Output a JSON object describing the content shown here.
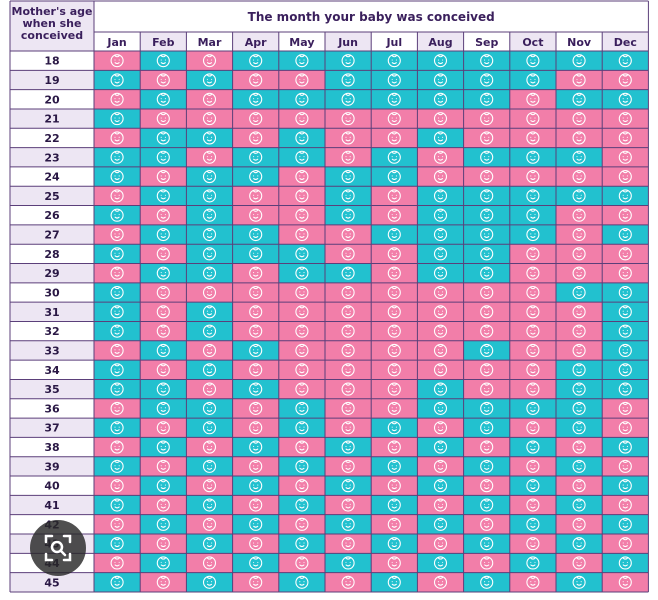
{
  "chart_data": {
    "type": "table",
    "corner_label": [
      "Mother's age",
      "when she",
      "conceived"
    ],
    "title": "The month your baby was conceived",
    "months": [
      "Jan",
      "Feb",
      "Mar",
      "Apr",
      "May",
      "Jun",
      "Jul",
      "Aug",
      "Sep",
      "Oct",
      "Nov",
      "Dec"
    ],
    "ages": [
      "18",
      "19",
      "20",
      "21",
      "22",
      "23",
      "24",
      "25",
      "26",
      "27",
      "28",
      "29",
      "30",
      "31",
      "32",
      "33",
      "34",
      "35",
      "36",
      "37",
      "38",
      "39",
      "40",
      "41",
      "42",
      "43",
      "44",
      "45"
    ],
    "legend_codes": {
      "G": "pink face",
      "B": "blue face"
    },
    "cells": [
      [
        "G",
        "B",
        "G",
        "B",
        "B",
        "B",
        "B",
        "B",
        "B",
        "B",
        "B",
        "B"
      ],
      [
        "B",
        "G",
        "B",
        "G",
        "G",
        "B",
        "B",
        "B",
        "B",
        "B",
        "G",
        "G"
      ],
      [
        "G",
        "B",
        "G",
        "B",
        "B",
        "B",
        "B",
        "B",
        "B",
        "G",
        "B",
        "B"
      ],
      [
        "B",
        "G",
        "G",
        "G",
        "G",
        "G",
        "G",
        "G",
        "G",
        "G",
        "G",
        "G"
      ],
      [
        "G",
        "B",
        "B",
        "G",
        "B",
        "G",
        "G",
        "B",
        "G",
        "G",
        "G",
        "G"
      ],
      [
        "B",
        "B",
        "G",
        "B",
        "B",
        "G",
        "B",
        "G",
        "B",
        "B",
        "B",
        "G"
      ],
      [
        "B",
        "G",
        "B",
        "B",
        "G",
        "B",
        "B",
        "G",
        "G",
        "G",
        "G",
        "G"
      ],
      [
        "G",
        "B",
        "B",
        "G",
        "G",
        "B",
        "G",
        "B",
        "B",
        "B",
        "B",
        "B"
      ],
      [
        "B",
        "G",
        "B",
        "G",
        "G",
        "B",
        "G",
        "B",
        "B",
        "B",
        "G",
        "G"
      ],
      [
        "G",
        "B",
        "B",
        "B",
        "G",
        "G",
        "B",
        "B",
        "B",
        "B",
        "G",
        "B"
      ],
      [
        "B",
        "G",
        "B",
        "B",
        "B",
        "G",
        "G",
        "B",
        "B",
        "G",
        "G",
        "G"
      ],
      [
        "G",
        "B",
        "B",
        "G",
        "B",
        "B",
        "G",
        "B",
        "B",
        "G",
        "G",
        "G"
      ],
      [
        "B",
        "G",
        "G",
        "G",
        "G",
        "G",
        "G",
        "G",
        "G",
        "G",
        "B",
        "B"
      ],
      [
        "B",
        "G",
        "B",
        "G",
        "G",
        "G",
        "G",
        "G",
        "G",
        "G",
        "G",
        "B"
      ],
      [
        "B",
        "G",
        "B",
        "G",
        "G",
        "G",
        "G",
        "G",
        "G",
        "G",
        "G",
        "B"
      ],
      [
        "G",
        "B",
        "G",
        "B",
        "G",
        "G",
        "G",
        "G",
        "B",
        "G",
        "G",
        "B"
      ],
      [
        "B",
        "G",
        "B",
        "G",
        "G",
        "G",
        "G",
        "G",
        "G",
        "G",
        "B",
        "B"
      ],
      [
        "B",
        "B",
        "G",
        "B",
        "G",
        "G",
        "G",
        "B",
        "G",
        "G",
        "B",
        "B"
      ],
      [
        "G",
        "B",
        "B",
        "G",
        "B",
        "G",
        "G",
        "B",
        "B",
        "B",
        "B",
        "G"
      ],
      [
        "B",
        "G",
        "B",
        "G",
        "B",
        "G",
        "B",
        "G",
        "B",
        "G",
        "B",
        "G"
      ],
      [
        "G",
        "B",
        "G",
        "B",
        "G",
        "B",
        "G",
        "B",
        "G",
        "B",
        "G",
        "B"
      ],
      [
        "B",
        "G",
        "B",
        "G",
        "B",
        "G",
        "B",
        "G",
        "B",
        "G",
        "B",
        "G"
      ],
      [
        "G",
        "B",
        "G",
        "B",
        "G",
        "B",
        "G",
        "B",
        "G",
        "B",
        "G",
        "B"
      ],
      [
        "B",
        "G",
        "B",
        "G",
        "B",
        "G",
        "B",
        "G",
        "B",
        "G",
        "B",
        "G"
      ],
      [
        "G",
        "B",
        "G",
        "B",
        "G",
        "B",
        "G",
        "B",
        "G",
        "B",
        "G",
        "B"
      ],
      [
        "B",
        "G",
        "B",
        "G",
        "B",
        "G",
        "B",
        "G",
        "B",
        "G",
        "B",
        "G"
      ],
      [
        "G",
        "B",
        "G",
        "B",
        "G",
        "B",
        "G",
        "B",
        "G",
        "B",
        "G",
        "B"
      ],
      [
        "B",
        "G",
        "B",
        "G",
        "B",
        "G",
        "B",
        "G",
        "B",
        "G",
        "B",
        "G"
      ]
    ]
  },
  "colors": {
    "girl": "#f27ea9",
    "boy": "#22c1cf",
    "header_bg": "#ede6f3",
    "border": "#5b3f7a",
    "label_bg_odd": "#ffffff",
    "label_bg_even": "#ede6f3"
  },
  "icons": {
    "cell": "baby-face-icon",
    "overlay": "lens-icon"
  }
}
